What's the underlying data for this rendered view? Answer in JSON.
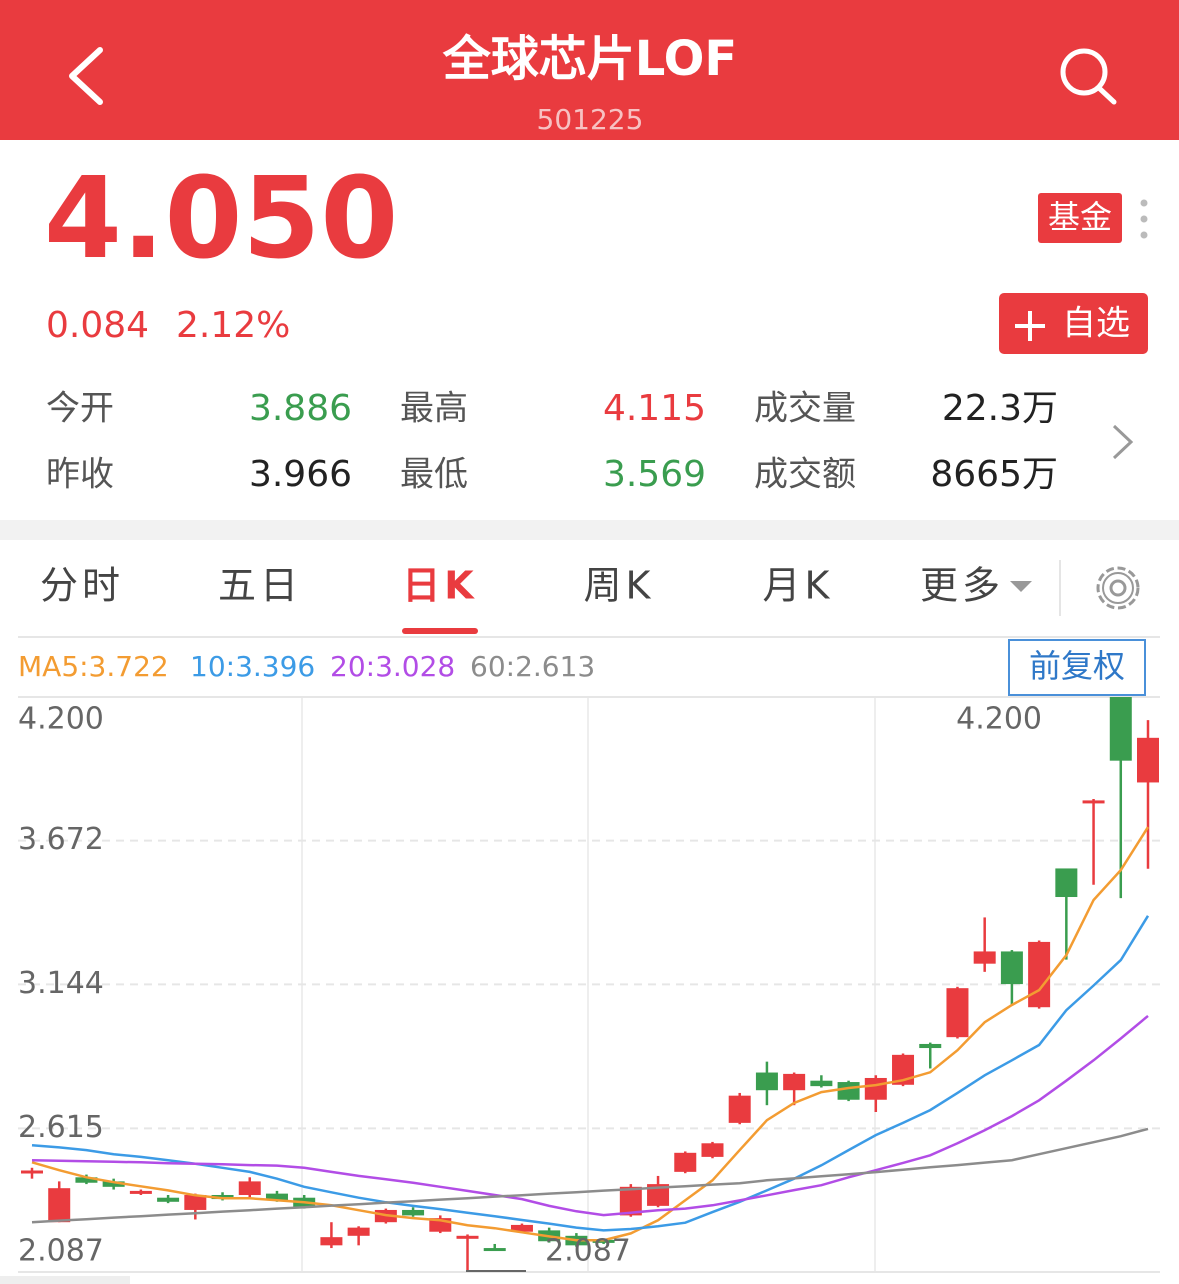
{
  "header": {
    "title": "全球芯片LOF",
    "code": "501225"
  },
  "quote": {
    "price": "4.050",
    "change": "0.084",
    "change_pct": "2.12%",
    "badge": "基金",
    "watch_button": "自选"
  },
  "stats": [
    {
      "label": "今开",
      "value": "3.886",
      "color": "#3a9d4f"
    },
    {
      "label": "最高",
      "value": "4.115",
      "color": "#e93b3f"
    },
    {
      "label": "成交量",
      "value": "22.3万",
      "color": "#222222"
    },
    {
      "label": "昨收",
      "value": "3.966",
      "color": "#222222"
    },
    {
      "label": "最低",
      "value": "3.569",
      "color": "#3a9d4f"
    },
    {
      "label": "成交额",
      "value": "8665万",
      "color": "#222222"
    }
  ],
  "tabs": [
    "分时",
    "五日",
    "日K",
    "周K",
    "月K",
    "更多"
  ],
  "active_tab": 2,
  "chart_data": {
    "type": "candlestick",
    "adjust_button": "前复权",
    "up_color": "#e93b3f",
    "down_color": "#3a9d4f",
    "ylim": [
      2.087,
      4.2
    ],
    "yticks": [
      {
        "value": 4.2,
        "label": "4.200"
      },
      3.672,
      3.144,
      2.615,
      2.087
    ],
    "grid": true,
    "annotations": [
      {
        "value": 4.2,
        "label": "4.200"
      },
      2.087
    ],
    "candles": {
      "open": [
        2.45,
        2.27,
        2.435,
        2.42,
        2.375,
        2.36,
        2.315,
        2.37,
        2.37,
        2.375,
        2.36,
        2.185,
        2.22,
        2.27,
        2.315,
        2.235,
        2.215,
        2.175,
        2.235,
        2.24,
        2.22,
        2.205,
        2.295,
        2.33,
        2.455,
        2.51,
        2.635,
        2.82,
        2.755,
        2.79,
        2.785,
        2.72,
        2.775,
        2.925,
        2.95,
        3.22,
        3.265,
        3.06,
        3.57,
        3.815,
        4.2,
        3.886
      ],
      "high": [
        2.47,
        2.42,
        2.445,
        2.43,
        2.39,
        2.37,
        2.375,
        2.38,
        2.435,
        2.385,
        2.37,
        2.27,
        2.255,
        2.32,
        2.325,
        2.295,
        2.225,
        2.19,
        2.265,
        2.25,
        2.23,
        2.21,
        2.41,
        2.44,
        2.53,
        2.565,
        2.745,
        2.86,
        2.82,
        2.81,
        2.79,
        2.81,
        2.89,
        2.93,
        3.135,
        3.39,
        3.27,
        3.305,
        3.57,
        3.825,
        4.2,
        4.115
      ],
      "low": [
        2.43,
        2.27,
        2.41,
        2.39,
        2.37,
        2.34,
        2.28,
        2.35,
        2.36,
        2.345,
        2.32,
        2.175,
        2.185,
        2.265,
        2.29,
        2.23,
        2.087,
        2.165,
        2.23,
        2.195,
        2.18,
        2.19,
        2.29,
        2.325,
        2.45,
        2.505,
        2.63,
        2.7,
        2.7,
        2.765,
        2.715,
        2.675,
        2.77,
        2.835,
        2.945,
        3.19,
        3.07,
        3.055,
        3.235,
        3.51,
        3.461,
        3.569
      ],
      "close": [
        2.46,
        2.395,
        2.415,
        2.4,
        2.385,
        2.345,
        2.37,
        2.355,
        2.42,
        2.35,
        2.325,
        2.215,
        2.25,
        2.315,
        2.295,
        2.285,
        2.22,
        2.17,
        2.26,
        2.2,
        2.185,
        2.195,
        2.4,
        2.41,
        2.525,
        2.56,
        2.735,
        2.755,
        2.815,
        2.77,
        2.72,
        2.8,
        2.885,
        2.91,
        3.13,
        3.265,
        3.145,
        3.3,
        3.465,
        3.82,
        3.966,
        4.05
      ]
    },
    "series": [
      {
        "name": "MA5:3.722",
        "color": "#f39c32",
        "values": [
          2.49,
          2.461,
          2.435,
          2.417,
          2.402,
          2.387,
          2.369,
          2.358,
          2.358,
          2.351,
          2.343,
          2.332,
          2.314,
          2.296,
          2.285,
          2.277,
          2.259,
          2.248,
          2.233,
          2.218,
          2.204,
          2.204,
          2.229,
          2.277,
          2.351,
          2.424,
          2.535,
          2.645,
          2.708,
          2.748,
          2.763,
          2.774,
          2.792,
          2.821,
          2.902,
          3.005,
          3.068,
          3.123,
          3.251,
          3.454,
          3.564,
          3.722
        ]
      },
      {
        "name": "10:3.396",
        "color": "#3c9be6",
        "values": [
          2.553,
          2.545,
          2.535,
          2.52,
          2.51,
          2.498,
          2.485,
          2.47,
          2.455,
          2.43,
          2.4,
          2.38,
          2.36,
          2.343,
          2.33,
          2.318,
          2.305,
          2.292,
          2.278,
          2.265,
          2.25,
          2.24,
          2.245,
          2.255,
          2.268,
          2.307,
          2.345,
          2.387,
          2.43,
          2.479,
          2.535,
          2.59,
          2.635,
          2.682,
          2.745,
          2.81,
          2.865,
          2.921,
          3.049,
          3.14,
          3.233,
          3.396
        ]
      },
      {
        "name": "20:3.028",
        "color": "#b24de6",
        "values": [
          2.498,
          2.496,
          2.494,
          2.492,
          2.49,
          2.487,
          2.485,
          2.483,
          2.48,
          2.478,
          2.47,
          2.455,
          2.44,
          2.428,
          2.415,
          2.4,
          2.385,
          2.37,
          2.355,
          2.33,
          2.31,
          2.296,
          2.305,
          2.314,
          2.32,
          2.332,
          2.35,
          2.369,
          2.388,
          2.406,
          2.435,
          2.461,
          2.488,
          2.516,
          2.56,
          2.608,
          2.66,
          2.718,
          2.79,
          2.865,
          2.945,
          3.028
        ]
      },
      {
        "name": "60:2.613",
        "color": "#8c8c8c",
        "values": [
          2.27,
          2.276,
          2.281,
          2.287,
          2.292,
          2.298,
          2.303,
          2.309,
          2.314,
          2.32,
          2.325,
          2.331,
          2.336,
          2.342,
          2.347,
          2.353,
          2.358,
          2.364,
          2.369,
          2.375,
          2.38,
          2.386,
          2.391,
          2.397,
          2.402,
          2.408,
          2.413,
          2.424,
          2.431,
          2.439,
          2.446,
          2.454,
          2.463,
          2.472,
          2.48,
          2.489,
          2.498,
          2.52,
          2.542,
          2.564,
          2.586,
          2.613
        ]
      }
    ]
  }
}
